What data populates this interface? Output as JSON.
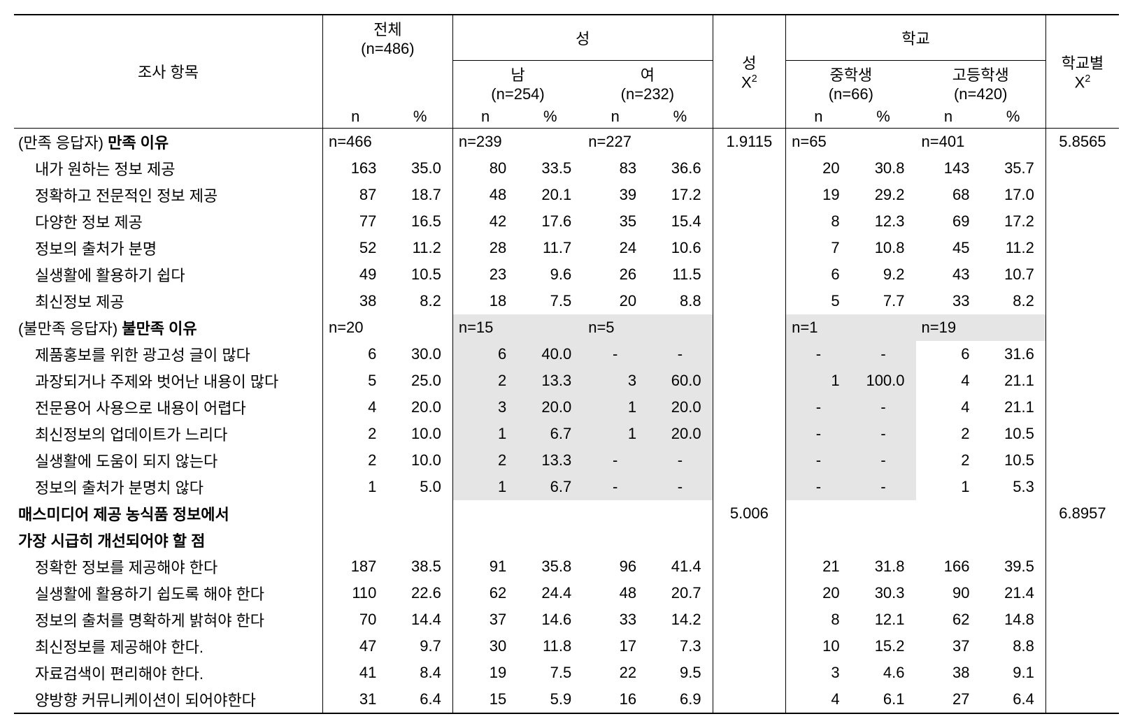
{
  "headers": {
    "item": "조사 항목",
    "total": "전체",
    "total_n": "(n=486)",
    "gender": "성",
    "male": "남",
    "male_n": "(n=254)",
    "female": "여",
    "female_n": "(n=232)",
    "gender_chi": "성",
    "school": "학교",
    "middle": "중학생",
    "middle_n": "(n=66)",
    "high": "고등학생",
    "high_n": "(n=420)",
    "school_chi": "학교별",
    "n": "n",
    "pct": "%",
    "chi2": "Χ²"
  },
  "sections": [
    {
      "label_prefix": "(만족 응답자) ",
      "label_bold": "만족 이유",
      "group_n": {
        "total": "n=466",
        "male": "n=239",
        "female": "n=227",
        "middle": "n=65",
        "high": "n=401"
      },
      "gender_chi": "1.9115",
      "school_chi": "5.8565",
      "rows": [
        {
          "label": "내가 원하는 정보 제공",
          "t_n": "163",
          "t_p": "35.0",
          "m_n": "80",
          "m_p": "33.5",
          "f_n": "83",
          "f_p": "36.6",
          "mi_n": "20",
          "mi_p": "30.8",
          "h_n": "143",
          "h_p": "35.7"
        },
        {
          "label": "정확하고 전문적인 정보 제공",
          "t_n": "87",
          "t_p": "18.7",
          "m_n": "48",
          "m_p": "20.1",
          "f_n": "39",
          "f_p": "17.2",
          "mi_n": "19",
          "mi_p": "29.2",
          "h_n": "68",
          "h_p": "17.0"
        },
        {
          "label": "다양한 정보 제공",
          "t_n": "77",
          "t_p": "16.5",
          "m_n": "42",
          "m_p": "17.6",
          "f_n": "35",
          "f_p": "15.4",
          "mi_n": "8",
          "mi_p": "12.3",
          "h_n": "69",
          "h_p": "17.2"
        },
        {
          "label": "정보의 출처가 분명",
          "t_n": "52",
          "t_p": "11.2",
          "m_n": "28",
          "m_p": "11.7",
          "f_n": "24",
          "f_p": "10.6",
          "mi_n": "7",
          "mi_p": "10.8",
          "h_n": "45",
          "h_p": "11.2"
        },
        {
          "label": "실생활에 활용하기 쉽다",
          "t_n": "49",
          "t_p": "10.5",
          "m_n": "23",
          "m_p": "9.6",
          "f_n": "26",
          "f_p": "11.5",
          "mi_n": "6",
          "mi_p": "9.2",
          "h_n": "43",
          "h_p": "10.7"
        },
        {
          "label": "최신정보 제공",
          "t_n": "38",
          "t_p": "8.2",
          "m_n": "18",
          "m_p": "7.5",
          "f_n": "20",
          "f_p": "8.8",
          "mi_n": "5",
          "mi_p": "7.7",
          "h_n": "33",
          "h_p": "8.2"
        }
      ]
    },
    {
      "label_prefix": "(불만족 응답자) ",
      "label_bold": "불만족 이유",
      "group_n": {
        "total": "n=20",
        "male": "n=15",
        "female": "n=5",
        "middle": "n=1",
        "high": "n=19"
      },
      "gender_chi": "",
      "school_chi": "",
      "shade": true,
      "rows": [
        {
          "label": "제품홍보를 위한 광고성 글이 많다",
          "t_n": "6",
          "t_p": "30.0",
          "m_n": "6",
          "m_p": "40.0",
          "f_n": "-",
          "f_p": "-",
          "mi_n": "-",
          "mi_p": "-",
          "h_n": "6",
          "h_p": "31.6"
        },
        {
          "label": "과장되거나 주제와 벗어난 내용이 많다",
          "t_n": "5",
          "t_p": "25.0",
          "m_n": "2",
          "m_p": "13.3",
          "f_n": "3",
          "f_p": "60.0",
          "mi_n": "1",
          "mi_p": "100.0",
          "h_n": "4",
          "h_p": "21.1"
        },
        {
          "label": "전문용어 사용으로 내용이 어렵다",
          "t_n": "4",
          "t_p": "20.0",
          "m_n": "3",
          "m_p": "20.0",
          "f_n": "1",
          "f_p": "20.0",
          "mi_n": "-",
          "mi_p": "-",
          "h_n": "4",
          "h_p": "21.1"
        },
        {
          "label": "최신정보의 업데이트가 느리다",
          "t_n": "2",
          "t_p": "10.0",
          "m_n": "1",
          "m_p": "6.7",
          "f_n": "1",
          "f_p": "20.0",
          "mi_n": "-",
          "mi_p": "-",
          "h_n": "2",
          "h_p": "10.5"
        },
        {
          "label": "실생활에 도움이 되지 않는다",
          "t_n": "2",
          "t_p": "10.0",
          "m_n": "2",
          "m_p": "13.3",
          "f_n": "-",
          "f_p": "-",
          "mi_n": "-",
          "mi_p": "-",
          "h_n": "2",
          "h_p": "10.5"
        },
        {
          "label": "정보의 출처가 분명치 않다",
          "t_n": "1",
          "t_p": "5.0",
          "m_n": "1",
          "m_p": "6.7",
          "f_n": "-",
          "f_p": "-",
          "mi_n": "-",
          "mi_p": "-",
          "h_n": "1",
          "h_p": "5.3"
        }
      ]
    },
    {
      "label_bold_lines": [
        "매스미디어 제공 농식품 정보에서",
        "가장 시급히 개선되어야 할 점"
      ],
      "gender_chi": "5.006",
      "school_chi": "6.8957",
      "rows": [
        {
          "label": "정확한 정보를 제공해야 한다",
          "t_n": "187",
          "t_p": "38.5",
          "m_n": "91",
          "m_p": "35.8",
          "f_n": "96",
          "f_p": "41.4",
          "mi_n": "21",
          "mi_p": "31.8",
          "h_n": "166",
          "h_p": "39.5"
        },
        {
          "label": "실생활에 활용하기 쉽도록 해야 한다",
          "t_n": "110",
          "t_p": "22.6",
          "m_n": "62",
          "m_p": "24.4",
          "f_n": "48",
          "f_p": "20.7",
          "mi_n": "20",
          "mi_p": "30.3",
          "h_n": "90",
          "h_p": "21.4"
        },
        {
          "label": "정보의 출처를 명확하게 밝혀야 한다",
          "t_n": "70",
          "t_p": "14.4",
          "m_n": "37",
          "m_p": "14.6",
          "f_n": "33",
          "f_p": "14.2",
          "mi_n": "8",
          "mi_p": "12.1",
          "h_n": "62",
          "h_p": "14.8"
        },
        {
          "label": "최신정보를 제공해야 한다.",
          "t_n": "47",
          "t_p": "9.7",
          "m_n": "30",
          "m_p": "11.8",
          "f_n": "17",
          "f_p": "7.3",
          "mi_n": "10",
          "mi_p": "15.2",
          "h_n": "37",
          "h_p": "8.8"
        },
        {
          "label": "자료검색이 편리해야 한다.",
          "t_n": "41",
          "t_p": "8.4",
          "m_n": "19",
          "m_p": "7.5",
          "f_n": "22",
          "f_p": "9.5",
          "mi_n": "3",
          "mi_p": "4.6",
          "h_n": "38",
          "h_p": "9.1"
        },
        {
          "label": "양방향 커뮤니케이션이 되어야한다",
          "t_n": "31",
          "t_p": "6.4",
          "m_n": "15",
          "m_p": "5.9",
          "f_n": "16",
          "f_p": "6.9",
          "mi_n": "4",
          "mi_p": "6.1",
          "h_n": "27",
          "h_p": "6.4"
        }
      ]
    }
  ],
  "colwidths": {
    "label": 380,
    "pair": 80,
    "chi": 90
  },
  "colors": {
    "shade": "#e5e5e5",
    "border": "#000000",
    "bg": "#ffffff"
  }
}
